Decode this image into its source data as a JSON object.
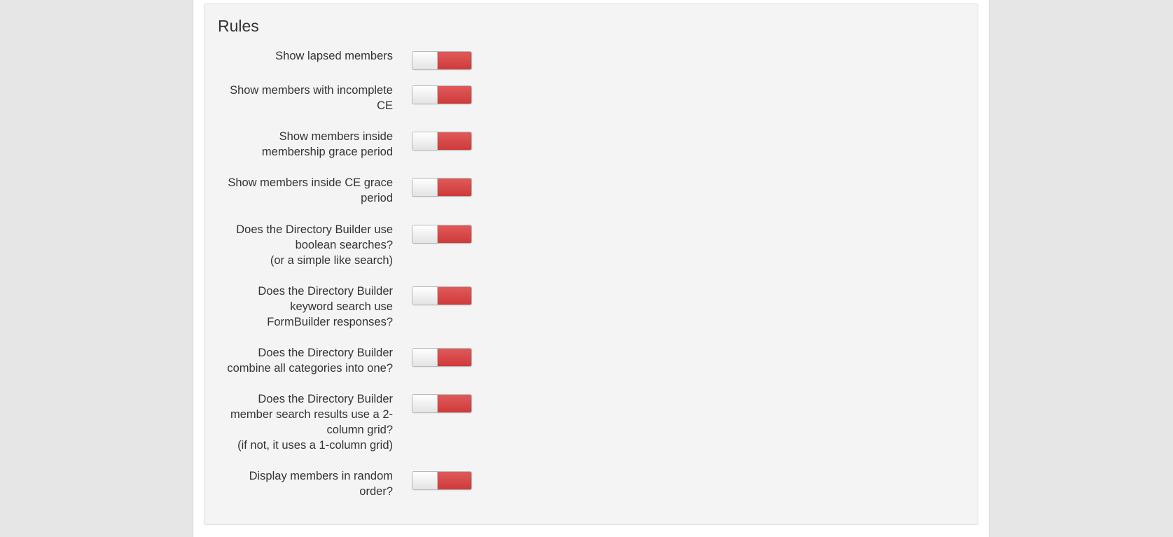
{
  "panel": {
    "title": "Rules"
  },
  "colors": {
    "toggle_off": "#d64545",
    "panel_background": "#f4f4f4",
    "page_background": "#e6e6e6"
  },
  "rules": [
    {
      "label": "Show lapsed members",
      "state": "off"
    },
    {
      "label": "Show members with incomplete\nCE",
      "state": "off"
    },
    {
      "label": "Show members inside\nmembership grace period",
      "state": "off"
    },
    {
      "label": "Show members inside CE grace\nperiod",
      "state": "off"
    },
    {
      "label": "Does the Directory Builder use\nboolean searches?\n(or a simple like search)",
      "state": "off"
    },
    {
      "label": "Does the Directory Builder\nkeyword search use\nFormBuilder responses?",
      "state": "off"
    },
    {
      "label": "Does the Directory Builder\ncombine all categories into one?",
      "state": "off"
    },
    {
      "label": "Does the Directory Builder\nmember search results use a 2-\ncolumn grid?\n(if not, it uses a 1-column grid)",
      "state": "off"
    },
    {
      "label": "Display members in random\norder?",
      "state": "off"
    }
  ]
}
